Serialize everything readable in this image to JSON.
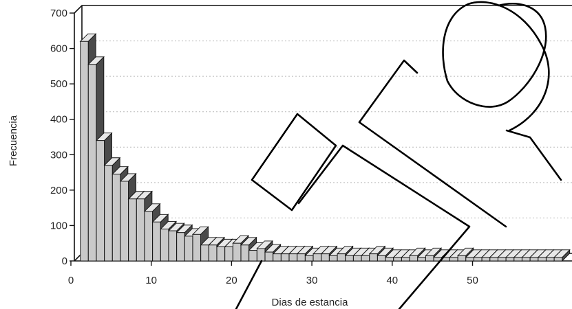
{
  "chart_data": {
    "type": "bar",
    "title": "",
    "xlabel": "Dias de estancia",
    "ylabel": "Frecuencia",
    "ylim": [
      0,
      700
    ],
    "xlim": [
      0,
      60
    ],
    "grid": true,
    "legend": "none",
    "yticks": [
      0,
      100,
      200,
      300,
      400,
      500,
      600,
      700
    ],
    "xticks": [
      0,
      10,
      20,
      30,
      40,
      50
    ],
    "x": [
      1,
      2,
      3,
      4,
      5,
      6,
      7,
      8,
      9,
      10,
      11,
      12,
      13,
      14,
      15,
      16,
      17,
      18,
      19,
      20,
      21,
      22,
      23,
      24,
      25,
      26,
      27,
      28,
      29,
      30,
      31,
      32,
      33,
      34,
      35,
      36,
      37,
      38,
      39,
      40,
      41,
      42,
      43,
      44,
      45,
      46,
      47,
      48,
      49,
      50,
      51,
      52,
      53,
      54,
      55,
      56,
      57,
      58,
      59,
      60
    ],
    "values": [
      620,
      555,
      340,
      270,
      245,
      225,
      175,
      175,
      140,
      110,
      90,
      85,
      80,
      70,
      75,
      45,
      45,
      40,
      40,
      50,
      45,
      30,
      35,
      25,
      20,
      20,
      20,
      20,
      15,
      20,
      20,
      15,
      20,
      15,
      15,
      15,
      20,
      15,
      10,
      10,
      10,
      15,
      10,
      15,
      10,
      10,
      10,
      15,
      10,
      10,
      10,
      10,
      10,
      10,
      10,
      10,
      10,
      10,
      10,
      10
    ],
    "colors": {
      "bar_front": "#c9c9c9",
      "bar_side": "#4a4a4a",
      "bar_top": "#e8e8e8"
    }
  },
  "watermark": {
    "type": "logo-outline"
  }
}
